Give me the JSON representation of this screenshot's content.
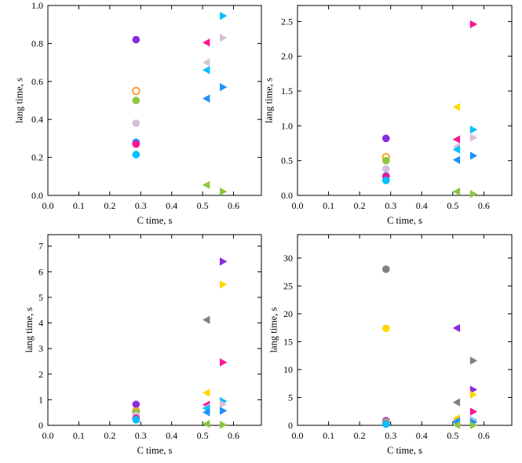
{
  "colors": {
    "purple": "#8a2be2",
    "orange": "#ff8c00",
    "green": "#8dc63f",
    "lavender": "#d8bfd8",
    "blue": "#1e90ff",
    "cyan": "#00bfff",
    "pink": "#ff1493",
    "yellow": "#ffd700",
    "gray": "#808080"
  },
  "chart_data": [
    {
      "type": "scatter",
      "title": "",
      "xlabel": "C time, s",
      "ylabel": "lang time, s",
      "xlim": [
        0,
        0.69
      ],
      "ylim": [
        0,
        1.0
      ],
      "xticks": [
        "0.0",
        "0.1",
        "0.2",
        "0.3",
        "0.4",
        "0.5",
        "0.6"
      ],
      "xtick_values": [
        0,
        0.1,
        0.2,
        0.3,
        0.4,
        0.5,
        0.6
      ],
      "yticks": [
        "0.0",
        "0.2",
        "0.4",
        "0.6",
        "0.8",
        "1.0"
      ],
      "ytick_values": [
        0,
        0.2,
        0.4,
        0.6,
        0.8,
        1.0
      ],
      "grid": false,
      "points": [
        {
          "x": 0.285,
          "y": 0.82,
          "marker": "circle",
          "color": "purple"
        },
        {
          "x": 0.285,
          "y": 0.55,
          "marker": "circle-open",
          "color": "orange"
        },
        {
          "x": 0.285,
          "y": 0.5,
          "marker": "circle",
          "color": "green"
        },
        {
          "x": 0.285,
          "y": 0.38,
          "marker": "circle",
          "color": "lavender"
        },
        {
          "x": 0.285,
          "y": 0.28,
          "marker": "circle",
          "color": "blue"
        },
        {
          "x": 0.285,
          "y": 0.27,
          "marker": "circle",
          "color": "pink"
        },
        {
          "x": 0.285,
          "y": 0.215,
          "marker": "circle",
          "color": "cyan"
        },
        {
          "x": 0.512,
          "y": 0.805,
          "marker": "tri-left",
          "color": "pink"
        },
        {
          "x": 0.512,
          "y": 0.7,
          "marker": "tri-left",
          "color": "lavender"
        },
        {
          "x": 0.512,
          "y": 0.66,
          "marker": "tri-left",
          "color": "cyan"
        },
        {
          "x": 0.512,
          "y": 0.51,
          "marker": "tri-left",
          "color": "blue"
        },
        {
          "x": 0.512,
          "y": 0.055,
          "marker": "tri-left",
          "color": "green"
        },
        {
          "x": 0.567,
          "y": 0.945,
          "marker": "tri-right",
          "color": "cyan"
        },
        {
          "x": 0.567,
          "y": 0.83,
          "marker": "tri-right",
          "color": "lavender"
        },
        {
          "x": 0.567,
          "y": 0.57,
          "marker": "tri-right",
          "color": "blue"
        },
        {
          "x": 0.567,
          "y": 0.02,
          "marker": "tri-right",
          "color": "green"
        }
      ]
    },
    {
      "type": "scatter",
      "title": "",
      "xlabel": "C time, s",
      "ylabel": "lang time, s",
      "xlim": [
        0,
        0.69
      ],
      "ylim": [
        0,
        2.73
      ],
      "xticks": [
        "0.0",
        "0.1",
        "0.2",
        "0.3",
        "0.4",
        "0.5",
        "0.6"
      ],
      "xtick_values": [
        0,
        0.1,
        0.2,
        0.3,
        0.4,
        0.5,
        0.6
      ],
      "yticks": [
        "0.0",
        "0.5",
        "1.0",
        "1.5",
        "2.0",
        "2.5"
      ],
      "ytick_values": [
        0,
        0.5,
        1.0,
        1.5,
        2.0,
        2.5
      ],
      "grid": false,
      "points": [
        {
          "x": 0.285,
          "y": 0.82,
          "marker": "circle",
          "color": "purple"
        },
        {
          "x": 0.285,
          "y": 0.55,
          "marker": "circle-open",
          "color": "orange"
        },
        {
          "x": 0.285,
          "y": 0.5,
          "marker": "circle",
          "color": "green"
        },
        {
          "x": 0.285,
          "y": 0.38,
          "marker": "circle",
          "color": "lavender"
        },
        {
          "x": 0.285,
          "y": 0.28,
          "marker": "circle",
          "color": "blue"
        },
        {
          "x": 0.285,
          "y": 0.27,
          "marker": "circle",
          "color": "pink"
        },
        {
          "x": 0.285,
          "y": 0.215,
          "marker": "circle",
          "color": "cyan"
        },
        {
          "x": 0.512,
          "y": 1.27,
          "marker": "tri-left",
          "color": "yellow"
        },
        {
          "x": 0.512,
          "y": 0.805,
          "marker": "tri-left",
          "color": "pink"
        },
        {
          "x": 0.512,
          "y": 0.7,
          "marker": "tri-left",
          "color": "lavender"
        },
        {
          "x": 0.512,
          "y": 0.66,
          "marker": "tri-left",
          "color": "cyan"
        },
        {
          "x": 0.512,
          "y": 0.51,
          "marker": "tri-left",
          "color": "blue"
        },
        {
          "x": 0.512,
          "y": 0.055,
          "marker": "tri-left",
          "color": "green"
        },
        {
          "x": 0.567,
          "y": 2.46,
          "marker": "tri-right",
          "color": "pink"
        },
        {
          "x": 0.567,
          "y": 0.945,
          "marker": "tri-right",
          "color": "cyan"
        },
        {
          "x": 0.567,
          "y": 0.83,
          "marker": "tri-right",
          "color": "lavender"
        },
        {
          "x": 0.567,
          "y": 0.57,
          "marker": "tri-right",
          "color": "blue"
        },
        {
          "x": 0.567,
          "y": 0.02,
          "marker": "tri-right",
          "color": "green"
        }
      ]
    },
    {
      "type": "scatter",
      "title": "",
      "xlabel": "C time, s",
      "ylabel": "lang time, s",
      "xlim": [
        0,
        0.69
      ],
      "ylim": [
        0,
        7.45
      ],
      "xticks": [
        "0.0",
        "0.1",
        "0.2",
        "0.3",
        "0.4",
        "0.5",
        "0.6"
      ],
      "xtick_values": [
        0,
        0.1,
        0.2,
        0.3,
        0.4,
        0.5,
        0.6
      ],
      "yticks": [
        "0",
        "1",
        "2",
        "3",
        "4",
        "5",
        "6",
        "7"
      ],
      "ytick_values": [
        0,
        1,
        2,
        3,
        4,
        5,
        6,
        7
      ],
      "grid": false,
      "points": [
        {
          "x": 0.285,
          "y": 0.82,
          "marker": "circle",
          "color": "purple"
        },
        {
          "x": 0.285,
          "y": 0.55,
          "marker": "circle-open",
          "color": "orange"
        },
        {
          "x": 0.285,
          "y": 0.5,
          "marker": "circle",
          "color": "green"
        },
        {
          "x": 0.285,
          "y": 0.38,
          "marker": "circle",
          "color": "lavender"
        },
        {
          "x": 0.285,
          "y": 0.28,
          "marker": "circle",
          "color": "blue"
        },
        {
          "x": 0.285,
          "y": 0.27,
          "marker": "circle",
          "color": "pink"
        },
        {
          "x": 0.285,
          "y": 0.215,
          "marker": "circle",
          "color": "cyan"
        },
        {
          "x": 0.512,
          "y": 4.12,
          "marker": "tri-left",
          "color": "gray"
        },
        {
          "x": 0.512,
          "y": 1.27,
          "marker": "tri-left",
          "color": "yellow"
        },
        {
          "x": 0.512,
          "y": 0.805,
          "marker": "tri-left",
          "color": "pink"
        },
        {
          "x": 0.512,
          "y": 0.7,
          "marker": "tri-left",
          "color": "lavender"
        },
        {
          "x": 0.512,
          "y": 0.66,
          "marker": "tri-left",
          "color": "cyan"
        },
        {
          "x": 0.512,
          "y": 0.51,
          "marker": "tri-left",
          "color": "blue"
        },
        {
          "x": 0.512,
          "y": 0.055,
          "marker": "tri-left",
          "color": "green"
        },
        {
          "x": 0.567,
          "y": 6.4,
          "marker": "tri-right",
          "color": "purple"
        },
        {
          "x": 0.567,
          "y": 5.5,
          "marker": "tri-right",
          "color": "yellow"
        },
        {
          "x": 0.567,
          "y": 2.46,
          "marker": "tri-right",
          "color": "pink"
        },
        {
          "x": 0.567,
          "y": 0.945,
          "marker": "tri-right",
          "color": "cyan"
        },
        {
          "x": 0.567,
          "y": 0.83,
          "marker": "tri-right",
          "color": "lavender"
        },
        {
          "x": 0.567,
          "y": 0.57,
          "marker": "tri-right",
          "color": "blue"
        },
        {
          "x": 0.567,
          "y": 0.02,
          "marker": "tri-right",
          "color": "green"
        }
      ]
    },
    {
      "type": "scatter",
      "title": "",
      "xlabel": "C time, s",
      "ylabel": "lang time, s",
      "xlim": [
        0,
        0.69
      ],
      "ylim": [
        0,
        34.2
      ],
      "xticks": [
        "0.0",
        "0.1",
        "0.2",
        "0.3",
        "0.4",
        "0.5",
        "0.6"
      ],
      "xtick_values": [
        0,
        0.1,
        0.2,
        0.3,
        0.4,
        0.5,
        0.6
      ],
      "yticks": [
        "0",
        "5",
        "10",
        "15",
        "20",
        "25",
        "30"
      ],
      "ytick_values": [
        0,
        5,
        10,
        15,
        20,
        25,
        30
      ],
      "grid": false,
      "points": [
        {
          "x": 0.285,
          "y": 28.0,
          "marker": "circle",
          "color": "gray"
        },
        {
          "x": 0.285,
          "y": 17.4,
          "marker": "circle",
          "color": "yellow"
        },
        {
          "x": 0.285,
          "y": 0.82,
          "marker": "circle",
          "color": "purple"
        },
        {
          "x": 0.285,
          "y": 0.55,
          "marker": "circle-open",
          "color": "orange"
        },
        {
          "x": 0.285,
          "y": 0.5,
          "marker": "circle",
          "color": "green"
        },
        {
          "x": 0.285,
          "y": 0.38,
          "marker": "circle",
          "color": "lavender"
        },
        {
          "x": 0.285,
          "y": 0.28,
          "marker": "circle",
          "color": "blue"
        },
        {
          "x": 0.285,
          "y": 0.27,
          "marker": "circle",
          "color": "pink"
        },
        {
          "x": 0.285,
          "y": 0.215,
          "marker": "circle",
          "color": "cyan"
        },
        {
          "x": 0.512,
          "y": 17.45,
          "marker": "tri-left",
          "color": "purple"
        },
        {
          "x": 0.512,
          "y": 4.12,
          "marker": "tri-left",
          "color": "gray"
        },
        {
          "x": 0.512,
          "y": 1.27,
          "marker": "tri-left",
          "color": "yellow"
        },
        {
          "x": 0.512,
          "y": 0.805,
          "marker": "tri-left",
          "color": "pink"
        },
        {
          "x": 0.512,
          "y": 0.7,
          "marker": "tri-left",
          "color": "lavender"
        },
        {
          "x": 0.512,
          "y": 0.66,
          "marker": "tri-left",
          "color": "cyan"
        },
        {
          "x": 0.512,
          "y": 0.51,
          "marker": "tri-left",
          "color": "blue"
        },
        {
          "x": 0.512,
          "y": 0.055,
          "marker": "tri-left",
          "color": "green"
        },
        {
          "x": 0.567,
          "y": 11.6,
          "marker": "tri-right",
          "color": "gray"
        },
        {
          "x": 0.567,
          "y": 6.4,
          "marker": "tri-right",
          "color": "purple"
        },
        {
          "x": 0.567,
          "y": 5.5,
          "marker": "tri-right",
          "color": "yellow"
        },
        {
          "x": 0.567,
          "y": 2.46,
          "marker": "tri-right",
          "color": "pink"
        },
        {
          "x": 0.567,
          "y": 0.945,
          "marker": "tri-right",
          "color": "cyan"
        },
        {
          "x": 0.567,
          "y": 0.83,
          "marker": "tri-right",
          "color": "lavender"
        },
        {
          "x": 0.567,
          "y": 0.57,
          "marker": "tri-right",
          "color": "blue"
        },
        {
          "x": 0.567,
          "y": 0.02,
          "marker": "tri-right",
          "color": "green"
        }
      ]
    }
  ]
}
